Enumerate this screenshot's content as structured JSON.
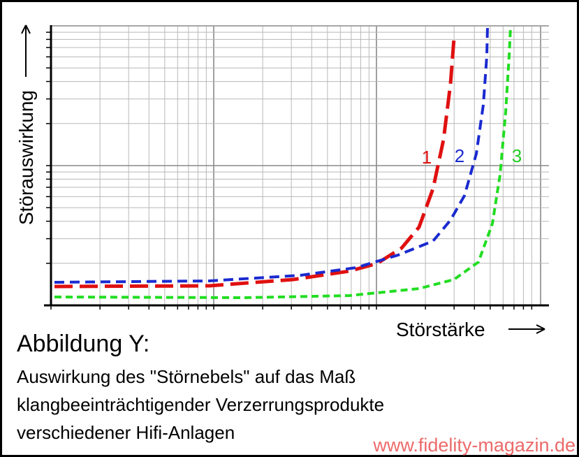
{
  "figure": {
    "y_axis_label": "Störauswirkung",
    "x_axis_label": "Störstärke",
    "curve_labels": [
      "1",
      "2",
      "3"
    ],
    "caption_title": "Abbildung Y:",
    "caption_lines": [
      "Auswirkung des \"Störnebels\" auf das Maß",
      "klangbeeinträchtigender Verzerrungsprodukte",
      "verschiedener Hifi-Anlagen"
    ],
    "watermark": "www.fidelity-magazin.de"
  }
}
